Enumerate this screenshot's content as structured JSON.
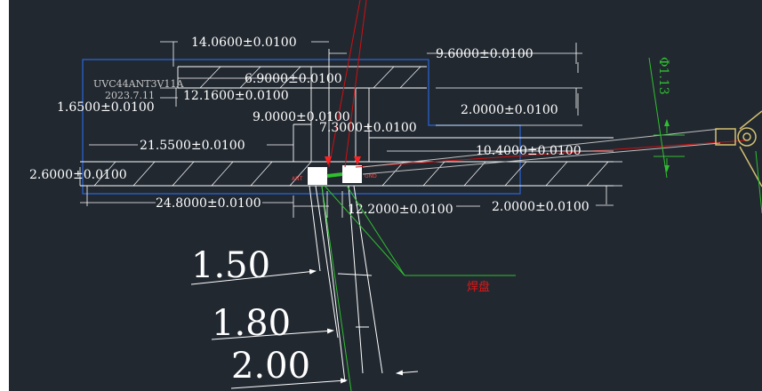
{
  "drawing": {
    "part_number": "UVC44ANT3V11A",
    "date": "2023.7.11",
    "pad_label": "焊盘",
    "small_labels": [
      "ANT",
      "GND"
    ],
    "diameter": "Φ1.13",
    "dims": {
      "d14_06": "14.0600±0.0100",
      "d9_60": "9.6000±0.0100",
      "d6_90": "6.9000±0.0100",
      "d12_16": "12.1600±0.0100",
      "d1_65": "1.6500±0.0100",
      "d9_00": "9.0000±0.0100",
      "d7_30": "7.3000±0.0100",
      "d2_00_top": "2.0000±0.0100",
      "d21_55": "21.5500±0.0100",
      "d10_40": "10.4000±0.0100",
      "d2_60": "2.6000±0.0100",
      "d24_80": "24.8000±0.0100",
      "d12_20": "12.2000±0.0100",
      "d2_00_bot": "2.0000±0.0100"
    },
    "detail": [
      "1.50",
      "1.80",
      "2.00"
    ]
  }
}
